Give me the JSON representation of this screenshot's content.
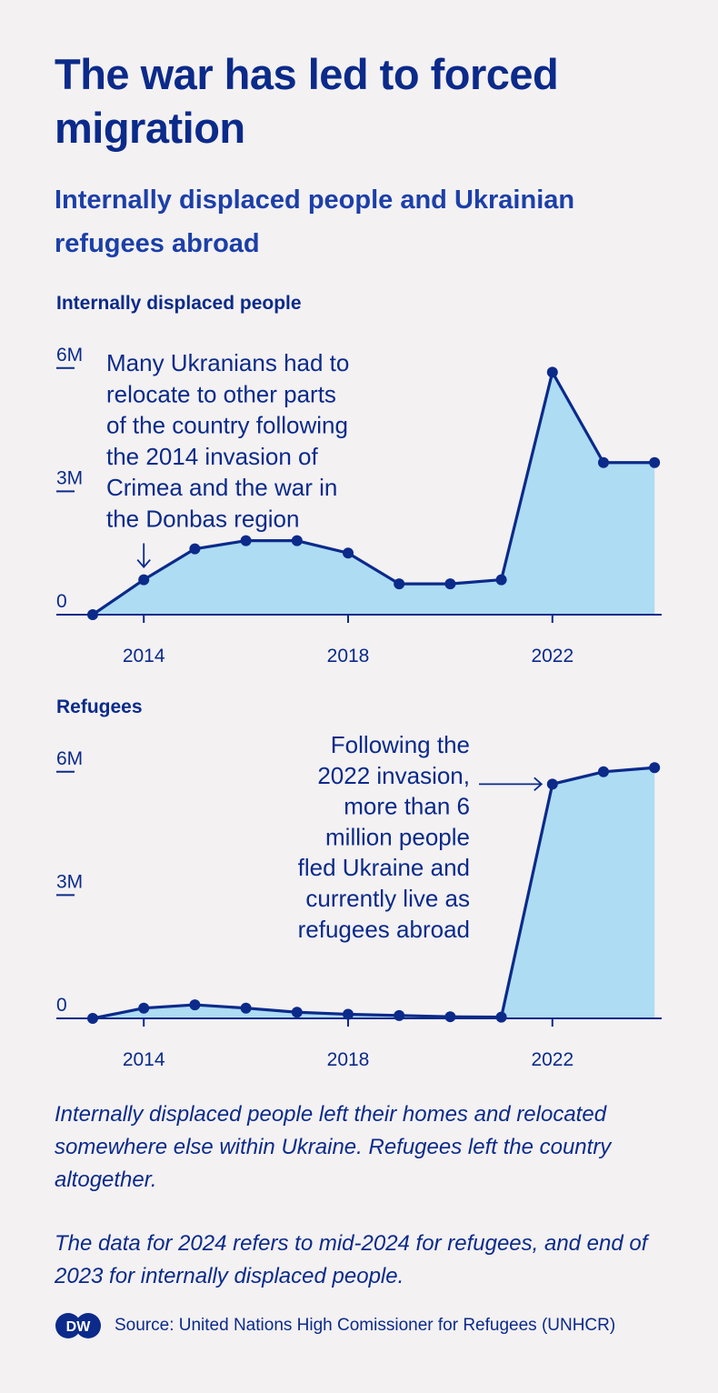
{
  "title": "The war has led to forced migration",
  "subtitle": "Internally displaced people and Ukrainian refugees abroad",
  "chart_data": [
    {
      "type": "area",
      "title": "Internally displaced people",
      "x": [
        2013,
        2014,
        2015,
        2016,
        2017,
        2018,
        2019,
        2020,
        2021,
        2022,
        2023,
        2024
      ],
      "values": [
        0,
        0.85,
        1.6,
        1.8,
        1.8,
        1.5,
        0.75,
        0.75,
        0.85,
        5.9,
        3.7,
        3.7
      ],
      "ylim": [
        0,
        6.4
      ],
      "y_ticks": [
        {
          "value": 6,
          "label": "6M"
        },
        {
          "value": 3,
          "label": "3M"
        },
        {
          "value": 0,
          "label": "0"
        }
      ],
      "x_ticks": [
        2014,
        2018,
        2022
      ],
      "annotation": {
        "lines": [
          "Many Ukranians had to",
          "relocate to other parts",
          "of the country following",
          "the 2014 invasion of",
          "Crimea and the war in",
          "the Donbas region"
        ],
        "x": 2014,
        "y": 0.85
      },
      "line_color": "#0b2a8a",
      "fill_color": "#addcf3"
    },
    {
      "type": "area",
      "title": "Refugees",
      "x": [
        2013,
        2014,
        2015,
        2016,
        2017,
        2018,
        2019,
        2020,
        2021,
        2022,
        2023,
        2024
      ],
      "values": [
        0,
        0.25,
        0.33,
        0.25,
        0.15,
        0.1,
        0.07,
        0.04,
        0.03,
        5.7,
        6.0,
        6.1
      ],
      "ylim": [
        0,
        6.4
      ],
      "y_ticks": [
        {
          "value": 6,
          "label": "6M"
        },
        {
          "value": 3,
          "label": "3M"
        },
        {
          "value": 0,
          "label": "0"
        }
      ],
      "x_ticks": [
        2014,
        2018,
        2022
      ],
      "annotation": {
        "lines": [
          "Following the",
          "2022 invasion,",
          "more than 6",
          "million people",
          "fled Ukraine and",
          "currently live as",
          "refugees abroad"
        ],
        "x": 2022,
        "y": 5.7
      },
      "line_color": "#0b2a8a",
      "fill_color": "#addcf3"
    }
  ],
  "notes": {
    "note1": "Internally displaced people left their homes and relocated somewhere else within Ukraine. Refugees left the country altogether.",
    "note2": "The data for 2024 refers to mid-2024 for refugees, and end of 2023 for internally displaced people."
  },
  "source": {
    "logo_text": "DW",
    "text": "Source: United Nations High Comissioner for Refugees (UNHCR)"
  }
}
